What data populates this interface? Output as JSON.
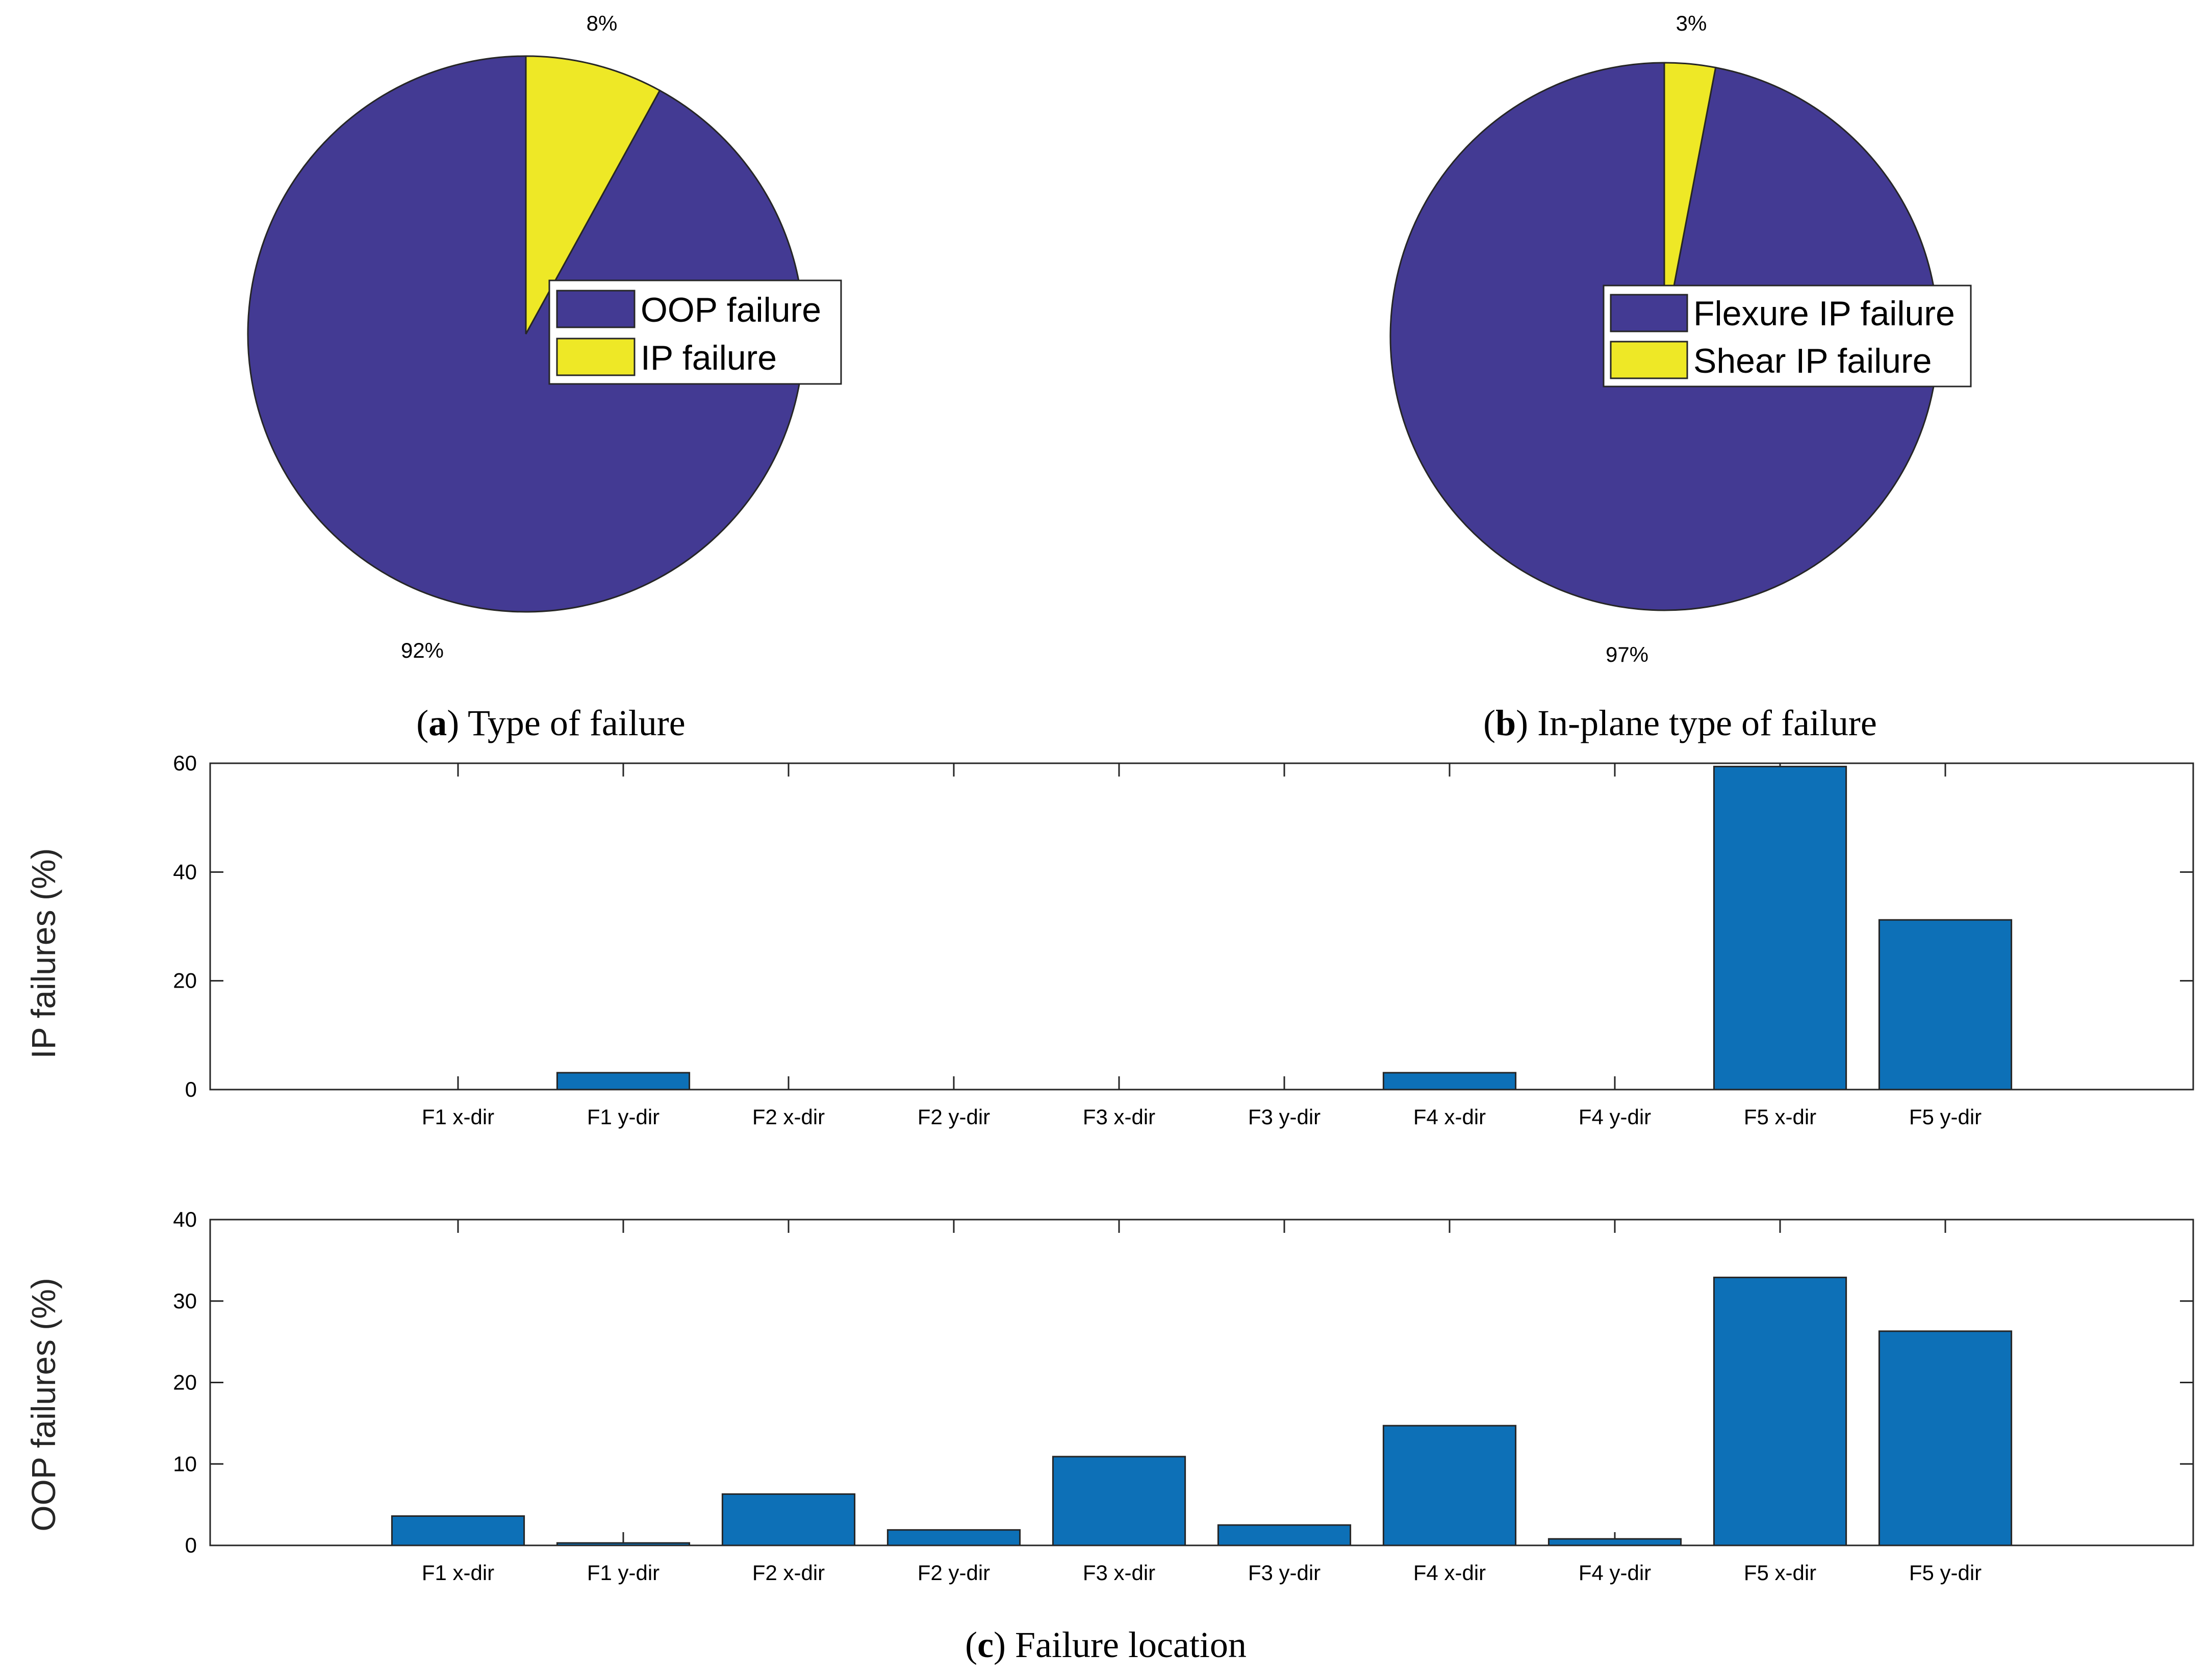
{
  "captions": {
    "a": {
      "letter": "a",
      "text": "Type of failure"
    },
    "b": {
      "letter": "b",
      "text": "In-plane type of failure"
    },
    "c": {
      "letter": "c",
      "text": "Failure location"
    }
  },
  "colors": {
    "purple": "#433a93",
    "yellow": "#eee826",
    "bar": "#0d70b7"
  },
  "chart_data": [
    {
      "id": "a",
      "type": "pie",
      "title": "Type of failure",
      "labels": [
        "OOP failure",
        "IP failure"
      ],
      "values": [
        92,
        8
      ],
      "percent_labels": [
        "92%",
        "8%"
      ],
      "colors": [
        "#433a93",
        "#eee826"
      ],
      "legend": "center-right"
    },
    {
      "id": "b",
      "type": "pie",
      "title": "In-plane type of failure",
      "labels": [
        "Flexure IP failure",
        "Shear IP failure"
      ],
      "values": [
        97,
        3
      ],
      "percent_labels": [
        "97%",
        "3%"
      ],
      "colors": [
        "#433a93",
        "#eee826"
      ],
      "legend": "center-right"
    },
    {
      "id": "c1",
      "type": "bar",
      "categories": [
        "F1 x-dir",
        "F1 y-dir",
        "F2 x-dir",
        "F2 y-dir",
        "F3 x-dir",
        "F3 y-dir",
        "F4 x-dir",
        "F4 y-dir",
        "F5 x-dir",
        "F5 y-dir"
      ],
      "values": [
        0,
        3.1,
        0,
        0,
        0,
        0,
        3.1,
        0,
        59.4,
        31.2
      ],
      "ylabel": "IP failures (%)",
      "xlabel": "",
      "ylim": [
        0,
        60
      ],
      "yticks": [
        "0",
        "20",
        "40",
        "60"
      ],
      "color": "#0d70b7"
    },
    {
      "id": "c2",
      "type": "bar",
      "categories": [
        "F1 x-dir",
        "F1 y-dir",
        "F2 x-dir",
        "F2 y-dir",
        "F3 x-dir",
        "F3 y-dir",
        "F4 x-dir",
        "F4 y-dir",
        "F5 x-dir",
        "F5 y-dir"
      ],
      "values": [
        3.6,
        0.3,
        6.3,
        1.9,
        10.9,
        2.5,
        14.7,
        0.8,
        32.9,
        26.3
      ],
      "ylabel": "OOP failures (%)",
      "xlabel": "",
      "ylim": [
        0,
        40
      ],
      "yticks": [
        "0",
        "10",
        "20",
        "30",
        "40"
      ],
      "color": "#0d70b7"
    }
  ]
}
